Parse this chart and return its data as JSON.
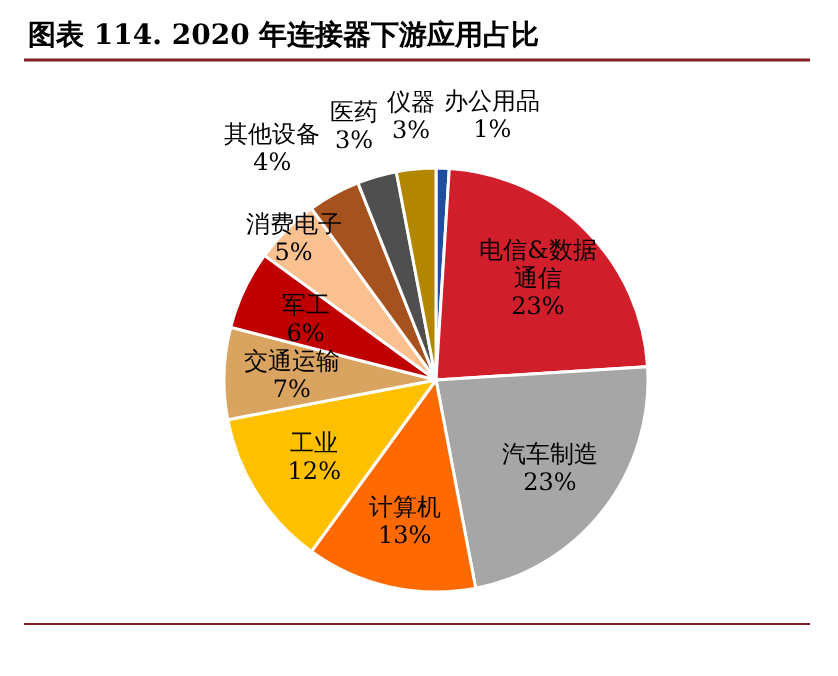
{
  "chart_data": {
    "type": "pie",
    "title": "图表 114.      2020 年连接器下游应用占比",
    "categories": [
      "办公用品",
      "电信&数据通信",
      "汽车制造",
      "计算机",
      "工业",
      "交通运输",
      "军工",
      "消费电子",
      "其他设备",
      "医药",
      "仪器"
    ],
    "values": [
      1,
      23,
      23,
      13,
      12,
      7,
      6,
      5,
      4,
      3,
      3
    ],
    "value_labels": [
      "1%",
      "23%",
      "23%",
      "13%",
      "12%",
      "7%",
      "6%",
      "5%",
      "4%",
      "3%",
      "3%"
    ],
    "colors": [
      "#1f4e9c",
      "#d01f2b",
      "#a6a6a6",
      "#ff6a00",
      "#ffc000",
      "#d9a45f",
      "#c00000",
      "#fac08f",
      "#a5521f",
      "#4f4f4f",
      "#b38600"
    ]
  }
}
